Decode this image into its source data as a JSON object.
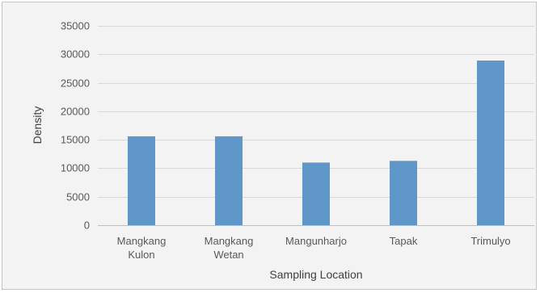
{
  "chart_data": {
    "type": "bar",
    "categories": [
      "Mangkang Kulon",
      "Mangkang Wetan",
      "Mangunharjo",
      "Tapak",
      "Trimulyo"
    ],
    "category_lines": [
      [
        "Mangkang",
        "Kulon"
      ],
      [
        "Mangkang",
        "Wetan"
      ],
      [
        "Mangunharjo"
      ],
      [
        "Tapak"
      ],
      [
        "Trimulyo"
      ]
    ],
    "series": [
      {
        "values": [
          15600,
          15600,
          11000,
          11300,
          28900
        ]
      }
    ],
    "xlabel": "Sampling Location",
    "ylabel": "Density",
    "ylim": [
      0,
      35000
    ],
    "yticks": [
      0,
      5000,
      10000,
      15000,
      20000,
      25000,
      30000,
      35000
    ],
    "grid": true,
    "legend": "none",
    "bar_color": "#5f97c9",
    "grid_color": "#d9d9d9",
    "axis_color": "#bfbfbf"
  }
}
